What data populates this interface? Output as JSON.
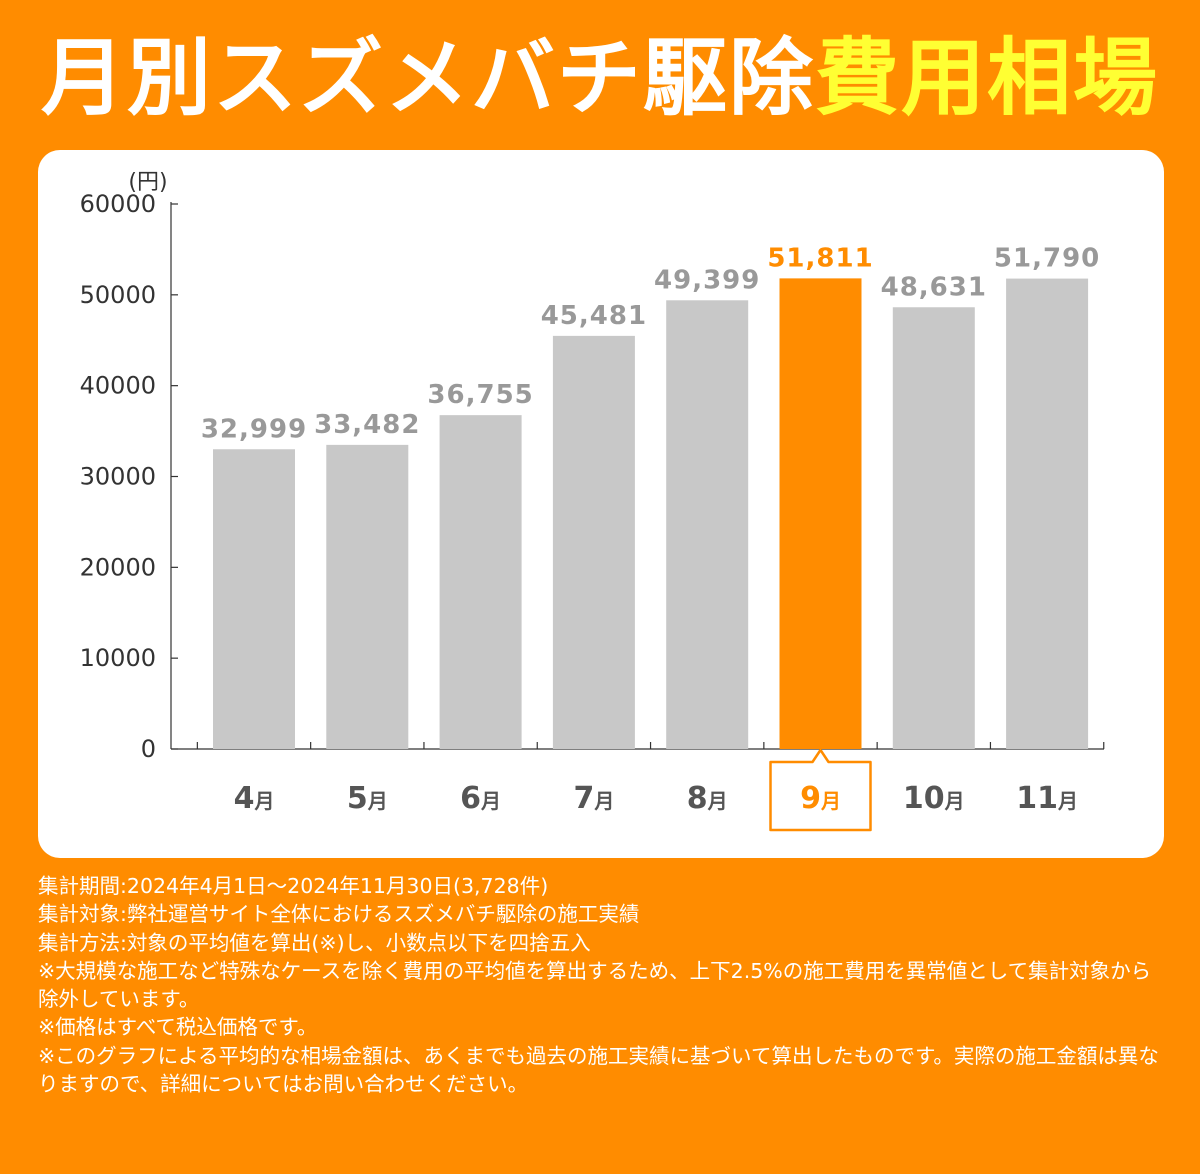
{
  "title": {
    "main": "月別スズメバチ駆除",
    "highlight": "費用相場"
  },
  "colors": {
    "background": "#ff8c00",
    "bar": "#c8c8c8",
    "highlight_bar": "#ff8c00",
    "label_gray": "#999999",
    "month_label": "#555555",
    "title_highlight": "#ffff33"
  },
  "chart_data": {
    "type": "bar",
    "y_unit_label": "(円)",
    "ylim": [
      0,
      60000
    ],
    "y_ticks": [
      "0",
      "10000",
      "20000",
      "30000",
      "40000",
      "50000",
      "60000"
    ],
    "categories": [
      "4月",
      "5月",
      "6月",
      "7月",
      "8月",
      "9月",
      "10月",
      "11月"
    ],
    "values": [
      32999,
      33482,
      36755,
      45481,
      49399,
      51811,
      48631,
      51790
    ],
    "value_labels": [
      "32,999",
      "33,482",
      "36,755",
      "45,481",
      "49,399",
      "51,811",
      "48,631",
      "51,790"
    ],
    "highlight_index": 5,
    "grid": false,
    "legend": "none"
  },
  "notes": [
    "集計期間:2024年4月1日〜2024年11月30日(3,728件)",
    "集計対象:弊社運営サイト全体におけるスズメバチ駆除の施工実績",
    "集計方法:対象の平均値を算出(※)し、小数点以下を四捨五入",
    "※大規模な施工など特殊なケースを除く費用の平均値を算出するため、上下2.5%の施工費用を異常値として集計対象から除外しています。",
    "※価格はすべて税込価格です。",
    "※このグラフによる平均的な相場金額は、あくまでも過去の施工実績に基づいて算出したものです。実際の施工金額は異なりますので、詳細についてはお問い合わせください。"
  ]
}
